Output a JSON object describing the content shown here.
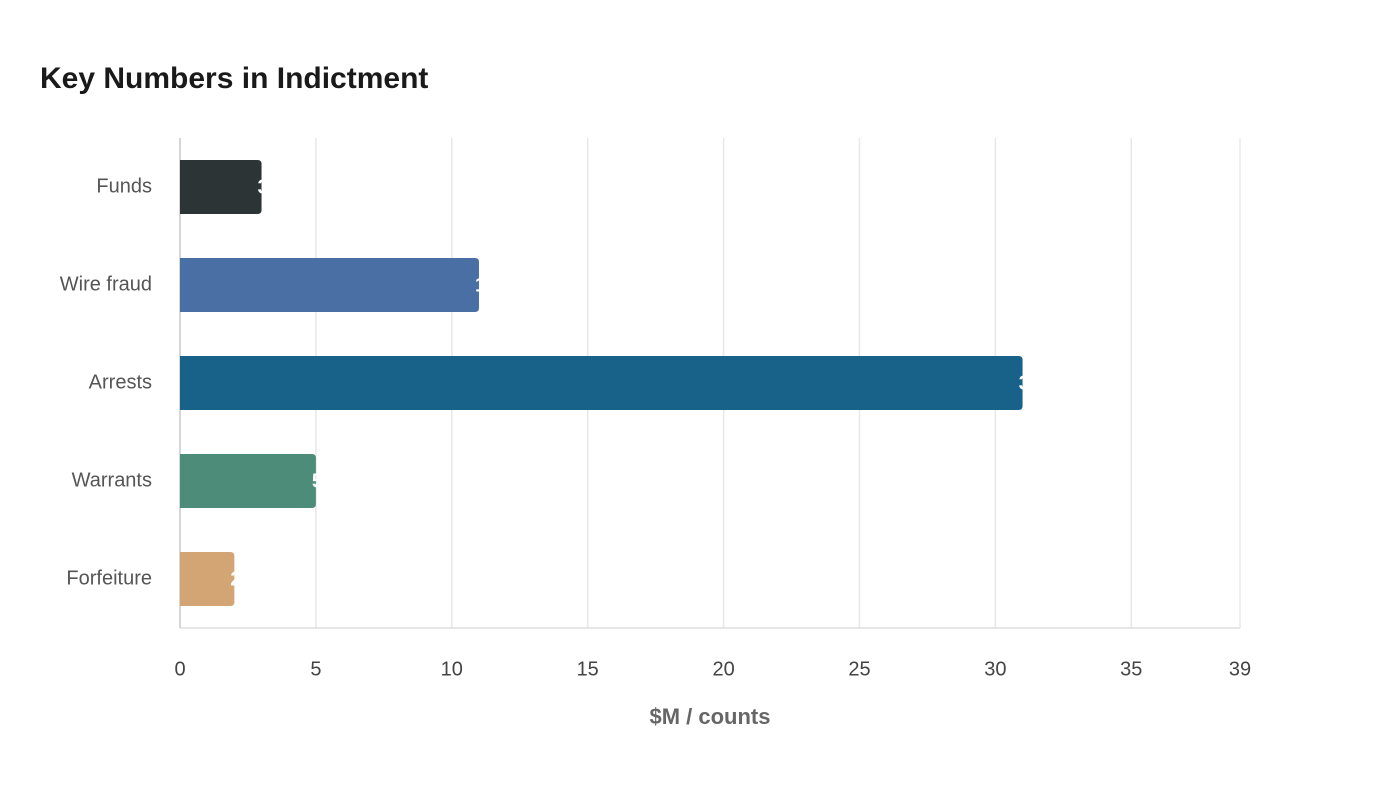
{
  "chart_data": {
    "type": "hbar",
    "title": "Key Numbers in Indictment",
    "categories": [
      "Funds",
      "Wire fraud",
      "Arrests",
      "Warrants",
      "Forfeiture"
    ],
    "values": [
      3,
      11,
      31,
      5,
      2
    ],
    "colors": [
      "#2d3436",
      "#4a6fa5",
      "#18628a",
      "#4e8c7a",
      "#d4a574"
    ],
    "xlabel": "$M / counts",
    "xlim": [
      0,
      39
    ],
    "xticks": [
      0,
      5,
      10,
      15,
      20,
      25,
      30,
      35,
      39
    ],
    "grid": true
  }
}
